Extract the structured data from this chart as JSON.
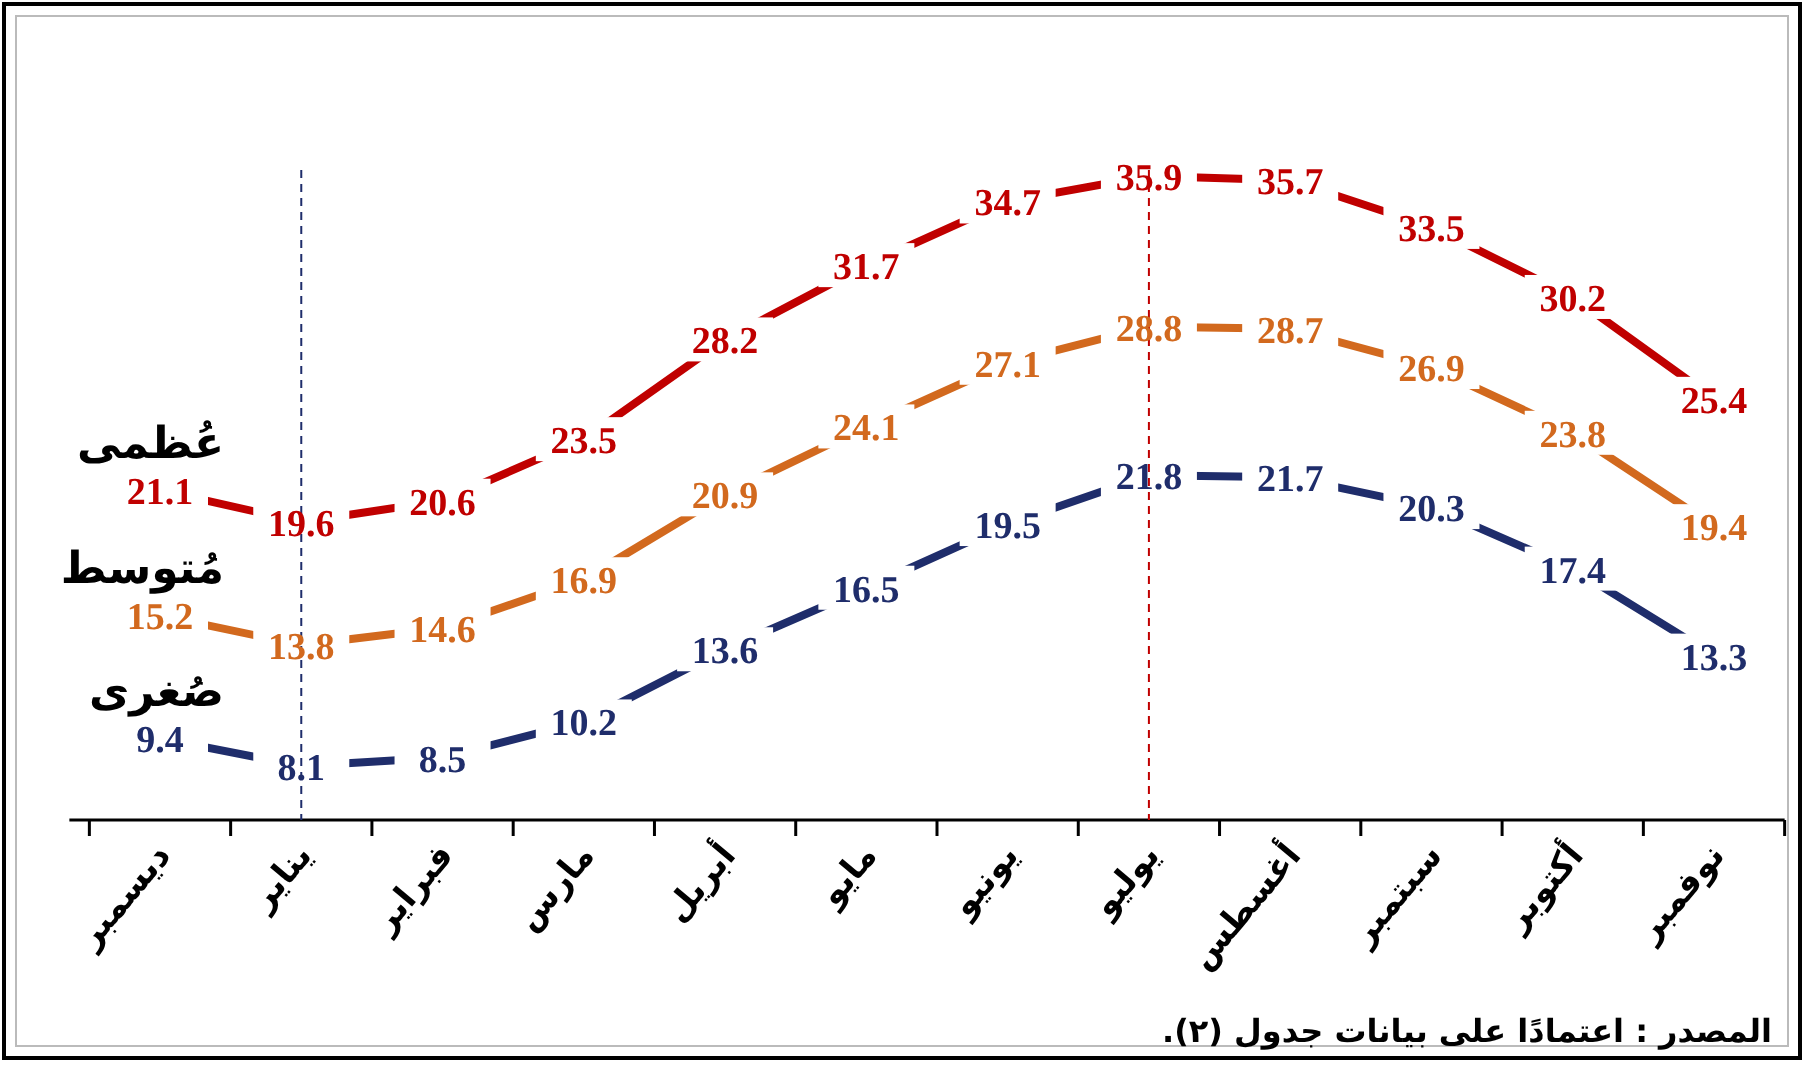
{
  "chart_data": {
    "type": "line",
    "categories": [
      "ديسمبر",
      "يناير",
      "فبراير",
      "مارس",
      "أبريل",
      "مايو",
      "يونيو",
      "يوليو",
      "أغسطس",
      "سبتمبر",
      "أكتوبر",
      "نوفمبر"
    ],
    "series": [
      {
        "name": "عُظمى",
        "color": "#c00000",
        "values": [
          21.1,
          19.6,
          20.6,
          23.5,
          28.2,
          31.7,
          34.7,
          35.9,
          35.7,
          33.5,
          30.2,
          25.4
        ]
      },
      {
        "name": "مُتوسط",
        "color": "#d2691e",
        "values": [
          15.2,
          13.8,
          14.6,
          16.9,
          20.9,
          24.1,
          27.1,
          28.8,
          28.7,
          26.9,
          23.8,
          19.4
        ]
      },
      {
        "name": "صُغرى",
        "color": "#1f2d6b",
        "values": [
          9.4,
          8.1,
          8.5,
          10.2,
          13.6,
          16.5,
          19.5,
          21.8,
          21.7,
          20.3,
          17.4,
          13.3
        ]
      }
    ],
    "ref_lines": [
      {
        "axis": "x",
        "value": "يناير",
        "color": "#1f2d6b",
        "line_style": "dashed"
      },
      {
        "axis": "x",
        "value": "يوليو",
        "color": "#c00000",
        "line_style": "dashed"
      }
    ],
    "data_labels": true,
    "legend": false,
    "grid": false,
    "marker": "none",
    "line_style": "solid",
    "annotations": [
      "المصدر : اعتمادًا على بيانات جدول (٢)."
    ]
  }
}
